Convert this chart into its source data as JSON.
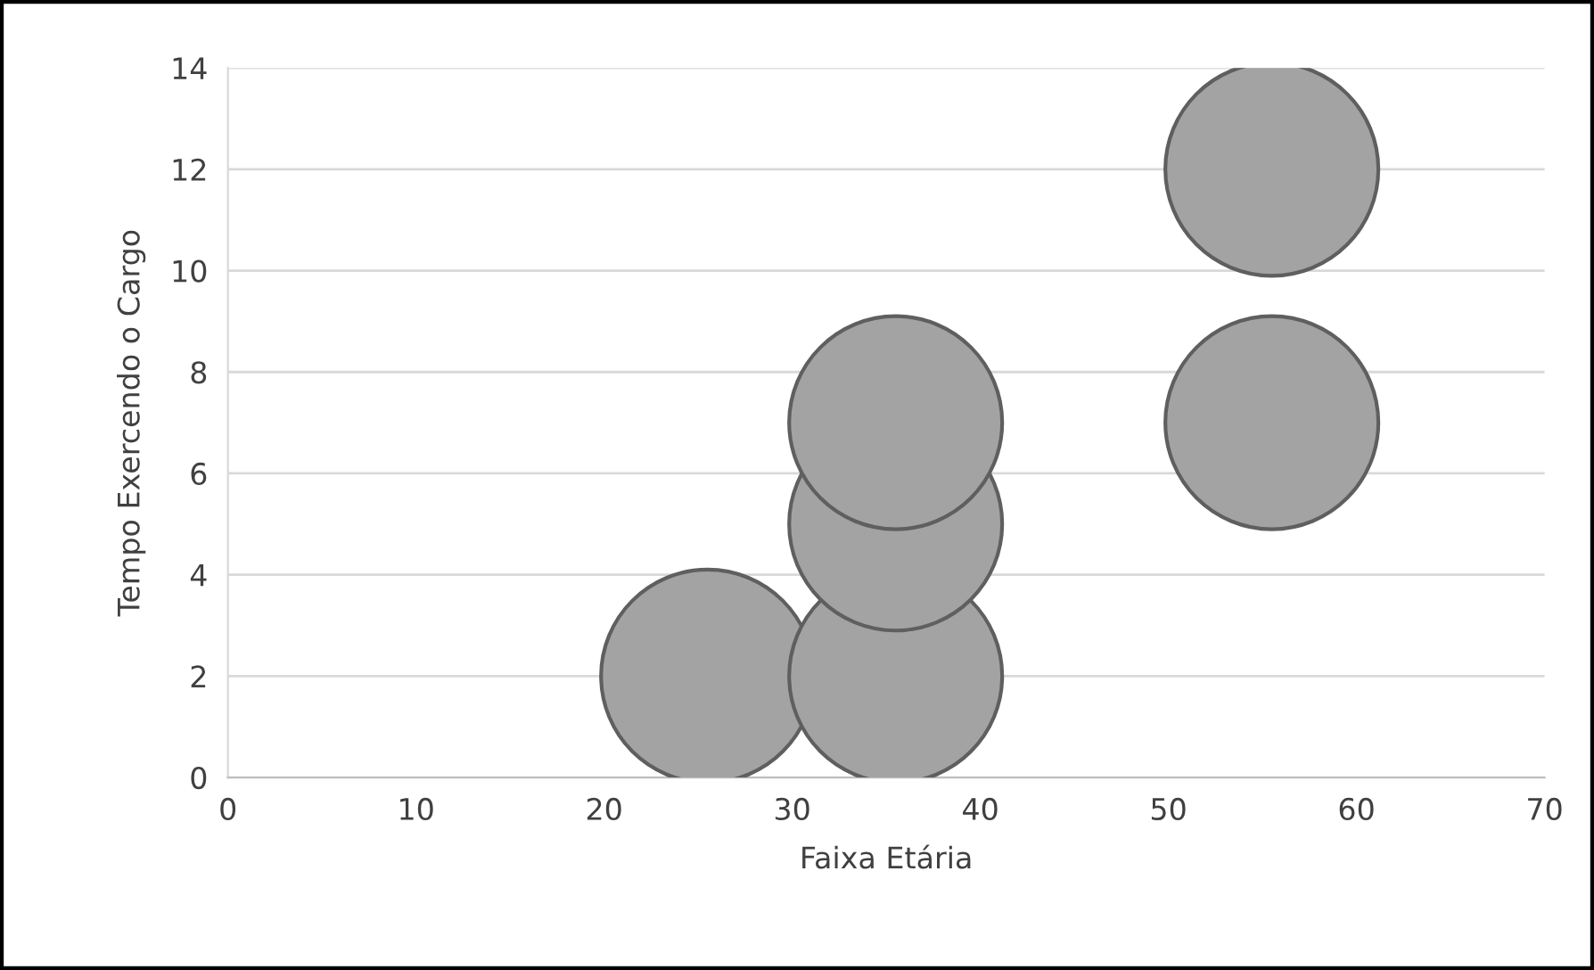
{
  "chart_data": {
    "type": "bubble",
    "xlabel": "Faixa Etária",
    "ylabel": "Tempo Exercendo o Cargo",
    "x": [
      25.5,
      35.5,
      35.5,
      35.5,
      55.5,
      55.5
    ],
    "values": [
      2,
      2,
      5,
      7,
      7,
      12
    ],
    "sizes": [
      1,
      1,
      1,
      1,
      1,
      1
    ],
    "color": "#a3a3a3",
    "xlim": [
      0,
      70
    ],
    "xticks": [
      0,
      10,
      20,
      30,
      40,
      50,
      60,
      70
    ],
    "ylim": [
      0,
      14
    ],
    "yticks": [
      0,
      2,
      4,
      6,
      8,
      10,
      12,
      14
    ],
    "grid": "y"
  }
}
